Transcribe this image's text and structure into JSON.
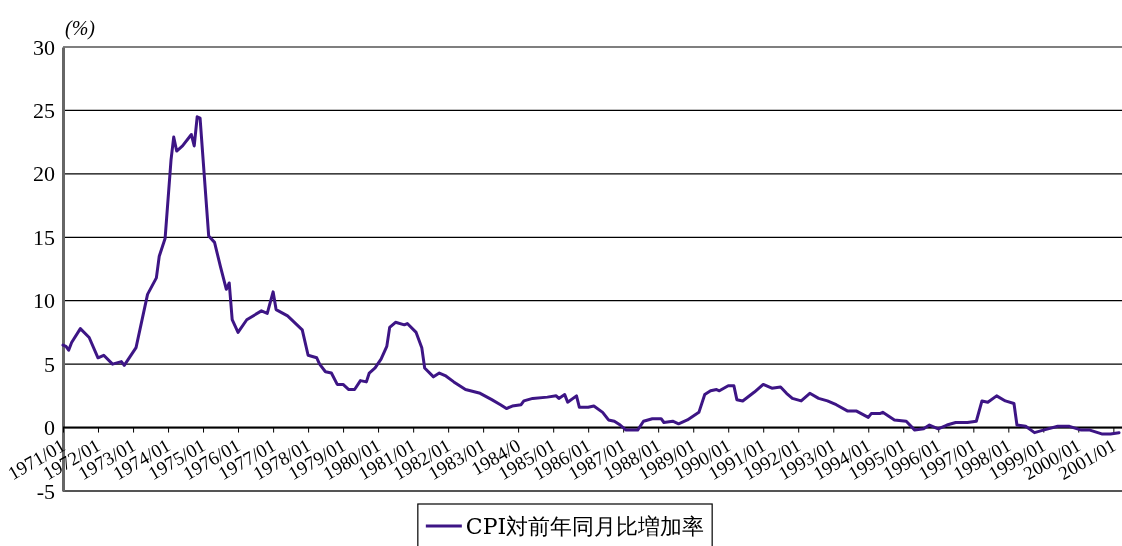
{
  "chart_data": {
    "type": "line",
    "ylabel": "(%)",
    "xlim": [
      "1971-01",
      "2001-04"
    ],
    "ylim": [
      -5,
      30
    ],
    "yticks": [
      -5,
      0,
      5,
      10,
      15,
      20,
      25,
      30
    ],
    "xticks": [
      {
        "value": "1971-01",
        "label": "1971/01"
      },
      {
        "value": "1972-01",
        "label": "1972/01"
      },
      {
        "value": "1973-01",
        "label": "1973/01"
      },
      {
        "value": "1974-01",
        "label": "1974/01"
      },
      {
        "value": "1975-01",
        "label": "1975/01"
      },
      {
        "value": "1976-01",
        "label": "1976/01"
      },
      {
        "value": "1977-01",
        "label": "1977/01"
      },
      {
        "value": "1978-01",
        "label": "1978/01"
      },
      {
        "value": "1979-01",
        "label": "1979/01"
      },
      {
        "value": "1980-01",
        "label": "1980/01"
      },
      {
        "value": "1981-01",
        "label": "1981/01"
      },
      {
        "value": "1982-01",
        "label": "1982/01"
      },
      {
        "value": "1983-01",
        "label": "1983/01"
      },
      {
        "value": "1984-01",
        "label": "1984/0"
      },
      {
        "value": "1985-01",
        "label": "1985/01"
      },
      {
        "value": "1986-01",
        "label": "1986/01"
      },
      {
        "value": "1987-01",
        "label": "1987/01"
      },
      {
        "value": "1988-01",
        "label": "1988/01"
      },
      {
        "value": "1989-01",
        "label": "1989/01"
      },
      {
        "value": "1990-01",
        "label": "1990/01"
      },
      {
        "value": "1991-01",
        "label": "1991/01"
      },
      {
        "value": "1992-01",
        "label": "1992/01"
      },
      {
        "value": "1993-01",
        "label": "1993/01"
      },
      {
        "value": "1994-01",
        "label": "1994/01"
      },
      {
        "value": "1995-01",
        "label": "1995/01"
      },
      {
        "value": "1996-01",
        "label": "1996/01"
      },
      {
        "value": "1997-01",
        "label": "1997/01"
      },
      {
        "value": "1998-01",
        "label": "1998/01"
      },
      {
        "value": "1999-01",
        "label": "1999/01"
      },
      {
        "value": "2000-01",
        "label": "2000/01"
      },
      {
        "value": "2001-01",
        "label": "2001/01"
      }
    ],
    "grid": "y",
    "legend": "bottom",
    "ref_lines": [
      {
        "axis": "y",
        "value": 0,
        "color": "#000000"
      }
    ],
    "marker": "none",
    "line_style": "solid",
    "series": [
      {
        "name": "CPI対前年同月比増加率",
        "color": "#3d1585",
        "x": [
          "1971-01",
          "1971-02",
          "1971-03",
          "1971-04",
          "1971-07",
          "1971-10",
          "1972-01",
          "1972-03",
          "1972-06",
          "1972-09",
          "1972-10",
          "1973-02",
          "1973-06",
          "1973-09",
          "1973-10",
          "1973-12",
          "1974-02",
          "1974-03",
          "1974-04",
          "1974-06",
          "1974-09",
          "1974-10",
          "1974-11",
          "1974-12",
          "1975-03",
          "1975-05",
          "1975-07",
          "1975-09",
          "1975-10",
          "1975-11",
          "1976-01",
          "1976-04",
          "1976-09",
          "1976-11",
          "1977-01",
          "1977-02",
          "1977-06",
          "1977-11",
          "1978-01",
          "1978-04",
          "1978-05",
          "1978-07",
          "1978-09",
          "1978-11",
          "1979-01",
          "1979-03",
          "1979-05",
          "1979-07",
          "1979-09",
          "1979-10",
          "1979-12",
          "1980-02",
          "1980-04",
          "1980-05",
          "1980-07",
          "1980-10",
          "1980-11",
          "1981-02",
          "1981-04",
          "1981-05",
          "1981-08",
          "1981-10",
          "1981-12",
          "1982-03",
          "1982-07",
          "1982-12",
          "1983-04",
          "1983-07",
          "1983-09",
          "1983-11",
          "1984-02",
          "1984-03",
          "1984-06",
          "1984-11",
          "1985-02",
          "1985-03",
          "1985-05",
          "1985-06",
          "1985-09",
          "1985-10",
          "1986-01",
          "1986-03",
          "1986-06",
          "1986-08",
          "1986-10",
          "1986-12",
          "1987-02",
          "1987-06",
          "1987-08",
          "1987-11",
          "1988-02",
          "1988-03",
          "1988-06",
          "1988-08",
          "1988-11",
          "1989-03",
          "1989-05",
          "1989-07",
          "1989-09",
          "1989-10",
          "1990-01",
          "1990-03",
          "1990-04",
          "1990-06",
          "1990-10",
          "1991-01",
          "1991-04",
          "1991-07",
          "1991-09",
          "1991-11",
          "1992-02",
          "1992-05",
          "1992-08",
          "1992-11",
          "1993-02",
          "1993-06",
          "1993-09",
          "1994-01",
          "1994-02",
          "1994-05",
          "1994-06",
          "1994-10",
          "1995-02",
          "1995-05",
          "1995-08",
          "1995-10",
          "1996-01",
          "1996-04",
          "1996-07",
          "1996-11",
          "1997-02",
          "1997-04",
          "1997-06",
          "1997-09",
          "1997-12",
          "1998-03",
          "1998-04",
          "1998-07",
          "1998-10",
          "1999-01",
          "1999-06",
          "1999-10",
          "2000-02",
          "2000-05",
          "2000-09",
          "2000-12",
          "2001-03"
        ],
        "values": [
          6.5,
          6.4,
          6.1,
          6.7,
          7.8,
          7.1,
          5.5,
          5.7,
          5.0,
          5.2,
          4.9,
          6.3,
          10.5,
          11.8,
          13.5,
          14.9,
          21.1,
          22.9,
          21.8,
          22.2,
          23.1,
          22.2,
          24.5,
          24.4,
          15.1,
          14.6,
          12.7,
          10.9,
          11.4,
          8.5,
          7.5,
          8.5,
          9.2,
          9.0,
          10.7,
          9.3,
          8.8,
          7.7,
          5.7,
          5.5,
          5.0,
          4.4,
          4.3,
          3.4,
          3.4,
          3.0,
          3.0,
          3.7,
          3.6,
          4.3,
          4.7,
          5.4,
          6.4,
          7.9,
          8.3,
          8.1,
          8.2,
          7.5,
          6.3,
          4.7,
          4.0,
          4.3,
          4.1,
          3.6,
          3.0,
          2.7,
          2.2,
          1.8,
          1.5,
          1.7,
          1.8,
          2.1,
          2.3,
          2.4,
          2.5,
          2.3,
          2.6,
          2.0,
          2.5,
          1.6,
          1.6,
          1.7,
          1.2,
          0.6,
          0.5,
          0.2,
          -0.2,
          -0.2,
          0.5,
          0.7,
          0.7,
          0.4,
          0.5,
          0.3,
          0.6,
          1.2,
          2.6,
          2.9,
          3.0,
          2.9,
          3.3,
          3.3,
          2.2,
          2.1,
          2.8,
          3.4,
          3.1,
          3.2,
          2.7,
          2.3,
          2.1,
          2.7,
          2.3,
          2.1,
          1.8,
          1.3,
          1.3,
          0.8,
          1.1,
          1.1,
          1.2,
          0.6,
          0.5,
          -0.2,
          -0.1,
          0.2,
          -0.1,
          0.2,
          0.4,
          0.4,
          0.5,
          2.1,
          2.0,
          2.5,
          2.1,
          1.9,
          0.2,
          0.1,
          -0.4,
          -0.2,
          0.1,
          0.1,
          -0.2,
          -0.2,
          -0.5,
          -0.5,
          -0.4
        ]
      }
    ]
  }
}
